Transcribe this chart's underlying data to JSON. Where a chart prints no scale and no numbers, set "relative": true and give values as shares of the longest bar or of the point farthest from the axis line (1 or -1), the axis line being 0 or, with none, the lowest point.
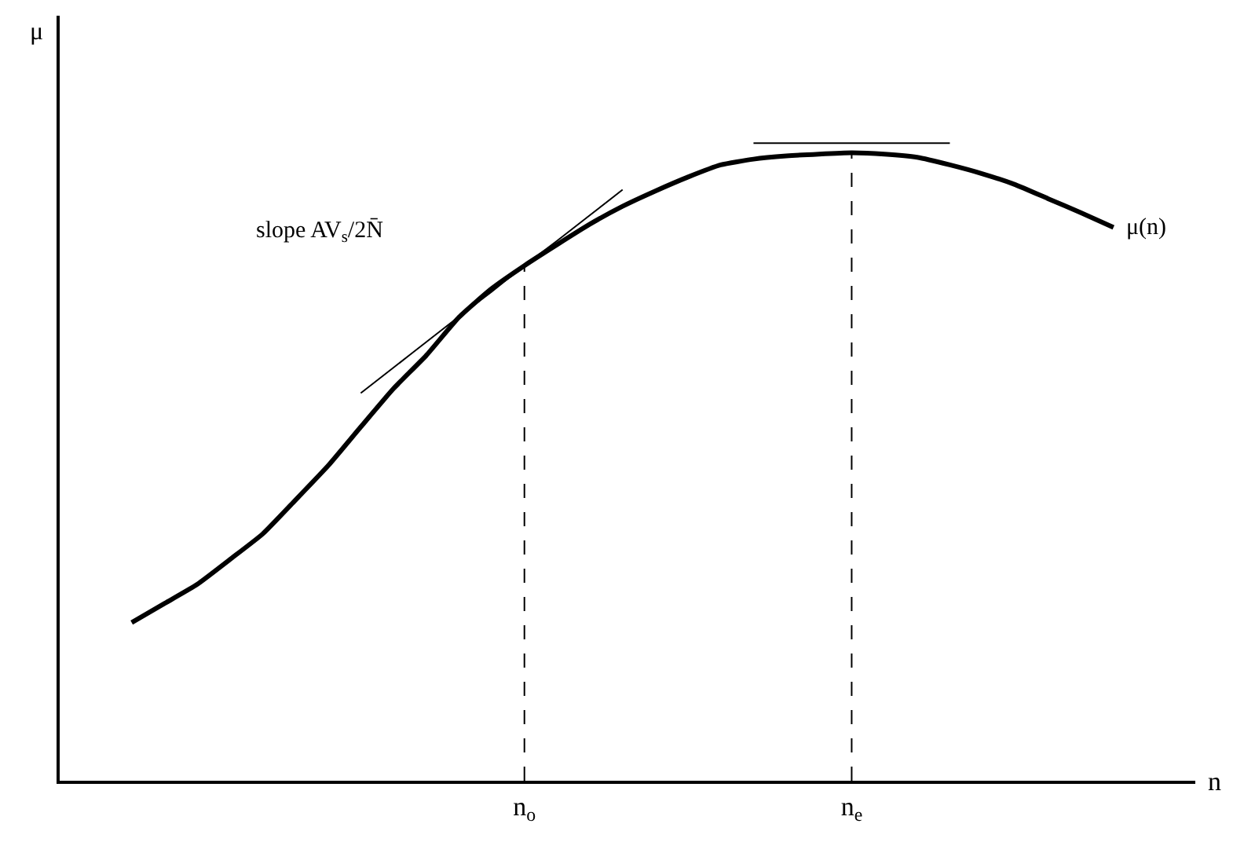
{
  "chart_data": {
    "type": "line",
    "relative": true,
    "xlabel": "n",
    "ylabel": "μ",
    "categories": [
      null,
      null,
      null,
      null,
      null,
      null,
      null,
      null,
      null,
      null,
      null,
      null,
      "n$_{o}$",
      null,
      null,
      null,
      null,
      null,
      null,
      null,
      null,
      null,
      "n$_{e}$",
      null,
      null,
      null,
      null,
      null,
      null,
      null,
      null
    ],
    "legend": false,
    "marker": "none",
    "line_style": "solid",
    "annotations": [
      "slope AV$_{s}$/2N̄"
    ],
    "series": [
      {
        "name": "μ(n)",
        "color": "#000000",
        "values": [
          0.248,
          0.278,
          0.308,
          0.347,
          0.387,
          0.44,
          0.494,
          0.555,
          0.615,
          0.667,
          0.727,
          0.772,
          0.808,
          0.841,
          0.873,
          0.901,
          0.925,
          0.947,
          0.966,
          0.975,
          0.98,
          0.983,
          0.985,
          0.983,
          0.978,
          0.966,
          0.952,
          0.935,
          0.913,
          0.891,
          0.868
        ]
      },
      {
        "color": "#000000",
        "values": [
          null,
          null,
          null,
          null,
          null,
          null,
          null,
          0.608,
          0.648,
          0.688,
          0.728,
          0.767,
          0.808,
          0.847,
          0.887,
          0.927,
          null,
          null,
          null,
          null,
          null,
          null,
          null,
          null,
          null,
          null,
          null,
          null,
          null,
          null,
          null
        ]
      },
      {
        "color": "#000000",
        "values": [
          null,
          null,
          null,
          null,
          null,
          null,
          null,
          null,
          null,
          null,
          null,
          null,
          null,
          null,
          null,
          null,
          null,
          null,
          null,
          1,
          1,
          1,
          1,
          1,
          1,
          1,
          null,
          null,
          null,
          null,
          null
        ]
      },
      {
        "color": "#000000",
        "line_style": "dashed",
        "x": [
          "n$_{o}$",
          "n$_{o}$"
        ],
        "values": [
          0,
          0.808
        ]
      },
      {
        "color": "#000000",
        "line_style": "dashed",
        "x": [
          "n$_{e}$",
          "n$_{e}$"
        ],
        "values": [
          0,
          0.985
        ]
      }
    ]
  }
}
